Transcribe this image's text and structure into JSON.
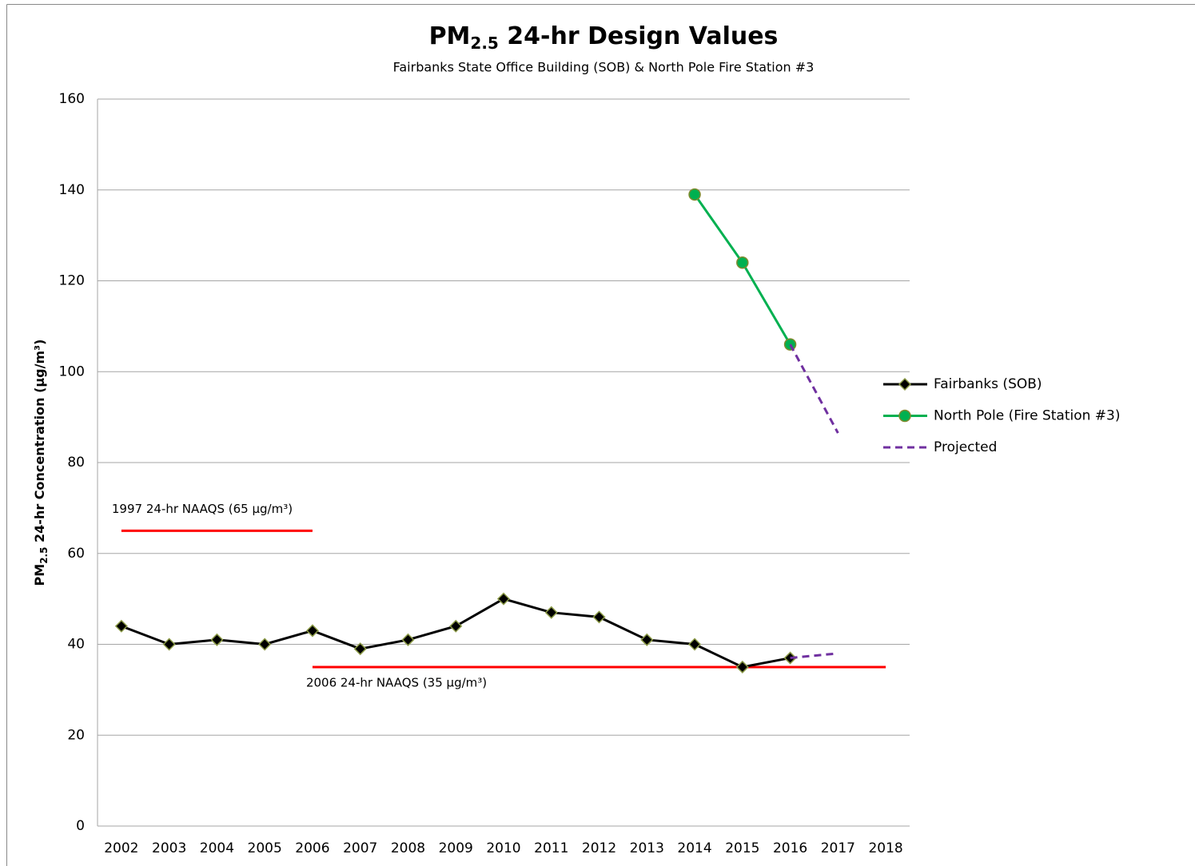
{
  "chart_data": {
    "type": "line",
    "title": [
      "PM",
      "2.5",
      " 24-hr Design Values"
    ],
    "subtitle": "Fairbanks State Office Building (SOB) & North Pole Fire Station #3",
    "y_label": [
      "PM",
      "2.5",
      " 24-hr Concentration (µg/m³)"
    ],
    "categories": [
      "2002",
      "2003",
      "2004",
      "2005",
      "2006",
      "2007",
      "2008",
      "2009",
      "2010",
      "2011",
      "2012",
      "2013",
      "2014",
      "2015",
      "2016",
      "2017",
      "2018"
    ],
    "series": [
      {
        "name": "Fairbanks (SOB)",
        "color": "#000000",
        "marker": "diamond",
        "values": [
          44,
          40,
          41,
          40,
          43,
          39,
          41,
          44,
          50,
          47,
          46,
          41,
          40,
          35,
          37,
          null,
          null
        ]
      },
      {
        "name": "North Pole (Fire Station #3)",
        "color": "#00b050",
        "marker": "circle",
        "values": [
          null,
          null,
          null,
          null,
          null,
          null,
          null,
          null,
          null,
          null,
          null,
          null,
          139,
          124,
          106,
          null,
          null
        ]
      },
      {
        "name": "Projected",
        "color": "#7030a0",
        "dashed": true,
        "lines": [
          {
            "values": [
              null,
              null,
              null,
              null,
              null,
              null,
              null,
              null,
              null,
              null,
              null,
              null,
              null,
              null,
              106,
              86.5,
              null
            ]
          },
          {
            "values": [
              null,
              null,
              null,
              null,
              null,
              null,
              null,
              null,
              null,
              null,
              null,
              null,
              null,
              null,
              37,
              38,
              null
            ]
          }
        ]
      }
    ],
    "reference_lines": [
      {
        "label": "1997 24-hr NAAQS (65 µg/m³)",
        "value": 65,
        "from": "2002",
        "to": "2006",
        "color": "#ff0000"
      },
      {
        "label": "2006 24-hr NAAQS (35 µg/m³)",
        "value": 35,
        "from": "2006",
        "to": "2018",
        "color": "#ff0000"
      }
    ],
    "ylim": [
      0,
      160
    ],
    "yticks": [
      0,
      20,
      40,
      60,
      80,
      100,
      120,
      140,
      160
    ],
    "grid": true,
    "legend": "right"
  }
}
